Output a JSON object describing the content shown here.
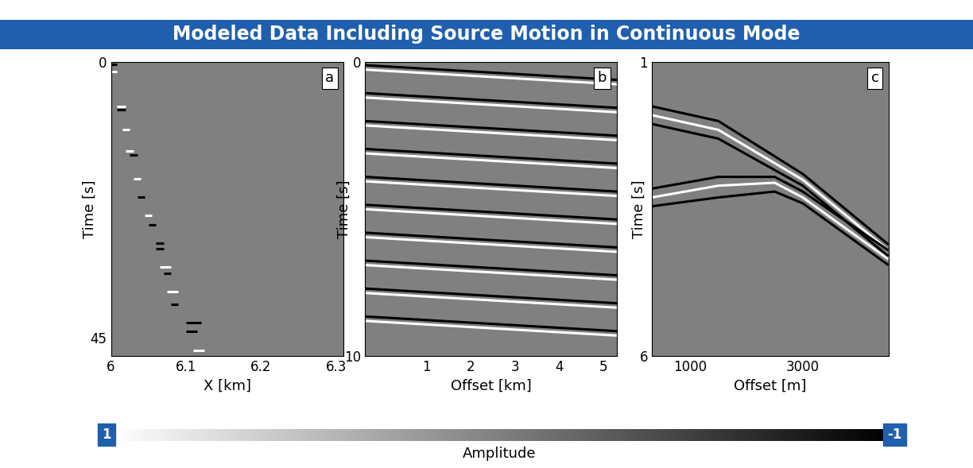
{
  "title": "Modeled Data Including Source Motion in Continuous Mode",
  "colorbar": {
    "label": "Amplitude",
    "range": [
      1,
      -1
    ],
    "ticks": [
      1,
      -1
    ]
  },
  "chart_data": [
    {
      "type": "seismic",
      "panel_label": "a",
      "xlabel": "X [km]",
      "ylabel": "Time [s]",
      "xlim": [
        6,
        6.31
      ],
      "ylim": [
        48,
        0
      ],
      "xticks": [
        6,
        6.1,
        6.2,
        6.3
      ],
      "yticks": [
        0,
        45
      ],
      "events": [
        {
          "x": [
            6.0,
            6.008
          ],
          "t": [
            0.3,
            0.3
          ],
          "amplitude": -1
        },
        {
          "x": [
            6.0,
            6.008
          ],
          "t": [
            1.5,
            1.5
          ],
          "amplitude": 1
        },
        {
          "x": [
            6.008,
            6.02
          ],
          "t": [
            7.2,
            7.2
          ],
          "amplitude": 1
        },
        {
          "x": [
            6.008,
            6.02
          ],
          "t": [
            7.8,
            7.8
          ],
          "amplitude": -1
        },
        {
          "x": [
            6.015,
            6.025
          ],
          "t": [
            11.0,
            11.0
          ],
          "amplitude": 1
        },
        {
          "x": [
            6.02,
            6.03
          ],
          "t": [
            14.5,
            14.5
          ],
          "amplitude": 1
        },
        {
          "x": [
            6.025,
            6.035
          ],
          "t": [
            15.2,
            15.2
          ],
          "amplitude": -1
        },
        {
          "x": [
            6.03,
            6.04
          ],
          "t": [
            19.0,
            19.0
          ],
          "amplitude": 1
        },
        {
          "x": [
            6.035,
            6.045
          ],
          "t": [
            22.0,
            22.0
          ],
          "amplitude": -1
        },
        {
          "x": [
            6.045,
            6.055
          ],
          "t": [
            25.0,
            25.0
          ],
          "amplitude": 1
        },
        {
          "x": [
            6.05,
            6.06
          ],
          "t": [
            26.5,
            26.5
          ],
          "amplitude": -1
        },
        {
          "x": [
            6.06,
            6.07
          ],
          "t": [
            29.5,
            29.5
          ],
          "amplitude": -1
        },
        {
          "x": [
            6.06,
            6.07
          ],
          "t": [
            30.5,
            30.5
          ],
          "amplitude": -1
        },
        {
          "x": [
            6.065,
            6.08
          ],
          "t": [
            33.5,
            33.5
          ],
          "amplitude": 1
        },
        {
          "x": [
            6.07,
            6.08
          ],
          "t": [
            34.5,
            34.5
          ],
          "amplitude": -1
        },
        {
          "x": [
            6.075,
            6.09
          ],
          "t": [
            37.5,
            37.5
          ],
          "amplitude": 1
        },
        {
          "x": [
            6.08,
            6.09
          ],
          "t": [
            39.5,
            39.5
          ],
          "amplitude": -1
        },
        {
          "x": [
            6.1,
            6.12
          ],
          "t": [
            42.5,
            42.5
          ],
          "amplitude": -1
        },
        {
          "x": [
            6.1,
            6.115
          ],
          "t": [
            44.0,
            44.0
          ],
          "amplitude": -1
        },
        {
          "x": [
            6.11,
            6.125
          ],
          "t": [
            47.0,
            47.0
          ],
          "amplitude": 1
        }
      ]
    },
    {
      "type": "seismic",
      "panel_label": "b",
      "xlabel": "Offset [km]",
      "ylabel": "Time [s]",
      "xlim": [
        -0.4,
        5.3
      ],
      "ylim": [
        10,
        0
      ],
      "xticks": [
        1,
        2,
        3,
        4,
        5
      ],
      "yticks": [
        0,
        10
      ],
      "events": [
        {
          "x": [
            -0.4,
            5.3
          ],
          "t": [
            0.1,
            0.6
          ],
          "amplitude": -1
        },
        {
          "x": [
            -0.4,
            5.3
          ],
          "t": [
            0.25,
            0.75
          ],
          "amplitude": 1
        },
        {
          "x": [
            -0.4,
            5.3
          ],
          "t": [
            1.05,
            1.55
          ],
          "amplitude": -1
        },
        {
          "x": [
            -0.4,
            5.3
          ],
          "t": [
            1.2,
            1.7
          ],
          "amplitude": 1
        },
        {
          "x": [
            -0.4,
            5.3
          ],
          "t": [
            2.0,
            2.5
          ],
          "amplitude": -1
        },
        {
          "x": [
            -0.4,
            5.3
          ],
          "t": [
            2.15,
            2.65
          ],
          "amplitude": 1
        },
        {
          "x": [
            -0.4,
            5.3
          ],
          "t": [
            2.95,
            3.45
          ],
          "amplitude": -1
        },
        {
          "x": [
            -0.4,
            5.3
          ],
          "t": [
            3.1,
            3.6
          ],
          "amplitude": 1
        },
        {
          "x": [
            -0.4,
            5.3
          ],
          "t": [
            3.9,
            4.4
          ],
          "amplitude": -1
        },
        {
          "x": [
            -0.4,
            5.3
          ],
          "t": [
            4.05,
            4.55
          ],
          "amplitude": 1
        },
        {
          "x": [
            -0.4,
            5.3
          ],
          "t": [
            4.85,
            5.35
          ],
          "amplitude": -1
        },
        {
          "x": [
            -0.4,
            5.3
          ],
          "t": [
            5.0,
            5.5
          ],
          "amplitude": 1
        },
        {
          "x": [
            -0.4,
            5.3
          ],
          "t": [
            5.8,
            6.3
          ],
          "amplitude": -1
        },
        {
          "x": [
            -0.4,
            5.3
          ],
          "t": [
            5.95,
            6.45
          ],
          "amplitude": 1
        },
        {
          "x": [
            -0.4,
            5.3
          ],
          "t": [
            6.75,
            7.25
          ],
          "amplitude": -1
        },
        {
          "x": [
            -0.4,
            5.3
          ],
          "t": [
            6.9,
            7.4
          ],
          "amplitude": 1
        },
        {
          "x": [
            -0.4,
            5.3
          ],
          "t": [
            7.7,
            8.2
          ],
          "amplitude": -1
        },
        {
          "x": [
            -0.4,
            5.3
          ],
          "t": [
            7.85,
            8.35
          ],
          "amplitude": 1
        },
        {
          "x": [
            -0.4,
            5.3
          ],
          "t": [
            8.65,
            9.15
          ],
          "amplitude": -1
        },
        {
          "x": [
            -0.4,
            5.3
          ],
          "t": [
            8.8,
            9.3
          ],
          "amplitude": 1
        }
      ]
    },
    {
      "type": "seismic",
      "panel_label": "c",
      "xlabel": "Offset [m]",
      "ylabel": "Time [s]",
      "xlim": [
        320,
        4520
      ],
      "ylim": [
        6,
        1
      ],
      "xticks": [
        1000,
        3000
      ],
      "yticks": [
        1,
        6
      ],
      "events": [
        {
          "x": [
            320,
            1500,
            3000,
            4520
          ],
          "t": [
            1.75,
            2.0,
            2.9,
            4.1
          ],
          "amplitude": -1
        },
        {
          "x": [
            320,
            1500,
            3000,
            4520
          ],
          "t": [
            1.9,
            2.15,
            3.0,
            4.2
          ],
          "amplitude": 1
        },
        {
          "x": [
            320,
            1500,
            3000,
            4520
          ],
          "t": [
            2.05,
            2.3,
            3.1,
            4.3
          ],
          "amplitude": -1
        },
        {
          "x": [
            320,
            1500,
            2500,
            3000,
            4520
          ],
          "t": [
            3.15,
            2.95,
            2.95,
            3.2,
            4.2
          ],
          "amplitude": -1
        },
        {
          "x": [
            320,
            1500,
            2500,
            3000,
            4520
          ],
          "t": [
            3.3,
            3.1,
            3.05,
            3.3,
            4.35
          ],
          "amplitude": 1
        },
        {
          "x": [
            320,
            1500,
            2500,
            3000,
            4520
          ],
          "t": [
            3.45,
            3.3,
            3.2,
            3.4,
            4.45
          ],
          "amplitude": -1
        }
      ]
    }
  ]
}
